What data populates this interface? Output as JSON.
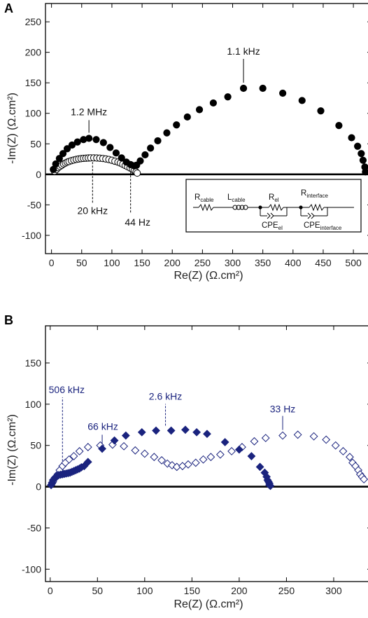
{
  "panels": {
    "a": "A",
    "b": "B"
  },
  "colors": {
    "black": "#000000",
    "navy": "#1a237e",
    "navy_fill": "#1a237e"
  },
  "chart_data": [
    {
      "type": "scatter",
      "panel": "A",
      "xlabel": "Re(Z) (Ω.cm²)",
      "ylabel": "-Im(Z) (Ω.cm²)",
      "xlim": [
        -10,
        530
      ],
      "ylim": [
        -130,
        280
      ],
      "xticks": [
        0,
        50,
        100,
        150,
        200,
        250,
        300,
        350,
        400,
        450,
        500
      ],
      "yticks": [
        -100,
        -50,
        0,
        50,
        100,
        150,
        200,
        250
      ],
      "grid": false,
      "zero_line": true,
      "series": [
        {
          "marker": "filled-circle",
          "color": "#000000",
          "x": [
            3,
            7,
            13,
            19,
            26,
            34,
            43,
            53,
            62,
            74,
            86,
            97,
            107,
            116,
            124,
            131,
            137,
            141,
            147,
            155,
            164,
            176,
            191,
            207,
            225,
            245,
            268,
            292,
            318,
            350,
            383,
            415,
            446,
            476,
            497,
            507,
            513,
            516,
            519,
            520
          ],
          "y": [
            8,
            17,
            26,
            34,
            42,
            48,
            53,
            57,
            59,
            57,
            52,
            44,
            35,
            27,
            20,
            16,
            14,
            15,
            22,
            32,
            43,
            55,
            68,
            81,
            94,
            106,
            117,
            127,
            141,
            141,
            133,
            121,
            104,
            80,
            60,
            46,
            34,
            23,
            12,
            4
          ]
        },
        {
          "marker": "open-circle",
          "color": "#000000",
          "x": [
            5,
            8,
            11,
            14,
            17,
            20,
            23,
            26,
            29,
            33,
            37,
            41,
            45,
            49,
            53,
            57,
            61,
            65,
            70,
            75,
            80,
            85,
            90,
            95,
            100,
            105,
            110,
            114,
            118,
            122,
            126,
            130,
            134,
            137,
            140,
            142
          ],
          "y": [
            5,
            8,
            11,
            13,
            15,
            17,
            18.5,
            20,
            21,
            22.5,
            23.5,
            24.5,
            25.2,
            25.8,
            26.2,
            26.5,
            26.8,
            27,
            27,
            26.8,
            26.5,
            26,
            25.2,
            24.3,
            23,
            21.5,
            20,
            18.5,
            16.5,
            14.5,
            12.5,
            10.5,
            8.5,
            6.5,
            4,
            2
          ]
        }
      ],
      "annotations": [
        {
          "text": "1.1 kHz",
          "x": 318,
          "y": 141
        },
        {
          "text": "1.2 MHz",
          "x": 62,
          "y": 59
        },
        {
          "text": "20 kHz",
          "x": 68,
          "y": 27
        },
        {
          "text": "44 Hz",
          "x": 131,
          "y": 11
        }
      ],
      "inset_circuit": {
        "elements": [
          {
            "base": "R",
            "sub": "cable"
          },
          {
            "base": "L",
            "sub": "cable"
          },
          {
            "base": "R",
            "sub": "el"
          },
          {
            "base": "R",
            "sub": "interface"
          },
          {
            "base": "CPE",
            "sub": "el"
          },
          {
            "base": "CPE",
            "sub": "interface"
          }
        ]
      }
    },
    {
      "type": "scatter",
      "panel": "B",
      "xlabel": "Re(Z) (Ω.cm²)",
      "ylabel": "-Im(Z) (Ω.cm²)",
      "xlim": [
        -5,
        340
      ],
      "ylim": [
        -115,
        195
      ],
      "xticks": [
        0,
        50,
        100,
        150,
        200,
        250,
        300
      ],
      "yticks": [
        -100,
        -50,
        0,
        50,
        100,
        150
      ],
      "grid": false,
      "zero_line": true,
      "series": [
        {
          "marker": "filled-diamond",
          "color": "#1a237e",
          "x": [
            1,
            2,
            3,
            5,
            7,
            9,
            11,
            13,
            15,
            17,
            19,
            21,
            23,
            25,
            27,
            29,
            31,
            33,
            36,
            40,
            55,
            68,
            80,
            97,
            112,
            128,
            143,
            155,
            166,
            185,
            200,
            213,
            222,
            227,
            229,
            230,
            231,
            232,
            232,
            233
          ],
          "y": [
            2,
            5,
            8,
            11,
            13,
            14,
            14.5,
            15,
            15.5,
            16,
            16.5,
            17,
            18,
            19,
            20,
            21,
            22,
            23.5,
            25,
            30,
            46,
            56,
            62,
            66,
            68,
            68,
            69,
            66,
            64,
            54,
            45,
            37,
            24,
            17,
            12,
            8,
            6,
            4,
            2,
            1
          ]
        },
        {
          "marker": "open-diamond",
          "color": "#1a237e",
          "x": [
            1,
            2,
            3,
            4,
            6,
            8,
            10,
            13,
            16,
            20,
            25,
            31,
            40,
            53,
            66,
            78,
            90,
            100,
            110,
            118,
            124,
            129,
            134,
            140,
            146,
            154,
            162,
            170,
            180,
            192,
            203,
            216,
            228,
            246,
            262,
            279,
            292,
            302,
            310,
            317,
            320,
            323,
            326,
            328,
            330,
            332
          ],
          "y": [
            2,
            4,
            6,
            9,
            11,
            15,
            20,
            25,
            29,
            33,
            37,
            43,
            48,
            50,
            51,
            49,
            44,
            40,
            36,
            32,
            28,
            26,
            24,
            25,
            27,
            29,
            33,
            36,
            39,
            43,
            48,
            55,
            59,
            62,
            63,
            61,
            57,
            50,
            43,
            36,
            29,
            25,
            20,
            15,
            12,
            9
          ]
        }
      ],
      "annotations": [
        {
          "text": "506 kHz",
          "x": 13,
          "y": 25
        },
        {
          "text": "66 kHz",
          "x": 55,
          "y": 46
        },
        {
          "text": "2.6 kHz",
          "x": 122,
          "y": 68
        },
        {
          "text": "33 Hz",
          "x": 246,
          "y": 62
        }
      ]
    }
  ]
}
